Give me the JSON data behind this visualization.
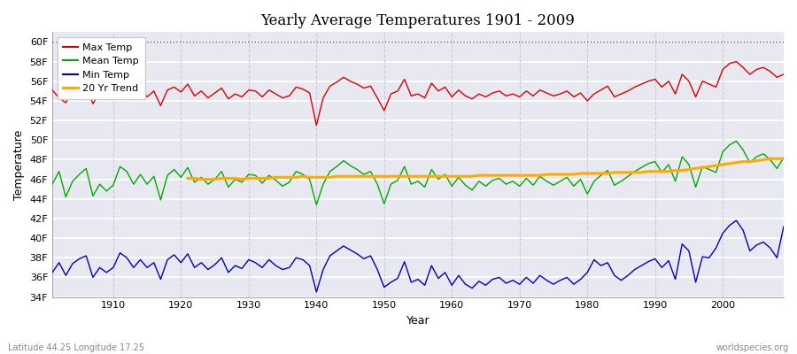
{
  "title": "Yearly Average Temperatures 1901 - 2009",
  "xlabel": "Year",
  "ylabel": "Temperature",
  "xlim": [
    1901,
    2009
  ],
  "ylim": [
    34,
    61
  ],
  "yticks": [
    34,
    36,
    38,
    40,
    42,
    44,
    46,
    48,
    50,
    52,
    54,
    56,
    58,
    60
  ],
  "ytick_labels": [
    "34F",
    "36F",
    "38F",
    "40F",
    "42F",
    "44F",
    "46F",
    "48F",
    "50F",
    "52F",
    "54F",
    "56F",
    "58F",
    "60F"
  ],
  "bg_color": "#e8e8f0",
  "fig_color": "#ffffff",
  "grid_color": "#ffffff",
  "vgrid_color": "#ccccdd",
  "dashed_line_y": 60,
  "dashed_line_color": "#555555",
  "legend_loc": "upper left",
  "footnote_left": "Latitude 44.25 Longitude 17.25",
  "footnote_right": "worldspecies.org",
  "colors": {
    "max": "#dd0000",
    "mean": "#00aa00",
    "min": "#0000cc",
    "trend": "#ffaa00"
  },
  "years": [
    1901,
    1902,
    1903,
    1904,
    1905,
    1906,
    1907,
    1908,
    1909,
    1910,
    1911,
    1912,
    1913,
    1914,
    1915,
    1916,
    1917,
    1918,
    1919,
    1920,
    1921,
    1922,
    1923,
    1924,
    1925,
    1926,
    1927,
    1928,
    1929,
    1930,
    1931,
    1932,
    1933,
    1934,
    1935,
    1936,
    1937,
    1938,
    1939,
    1940,
    1941,
    1942,
    1943,
    1944,
    1945,
    1946,
    1947,
    1948,
    1949,
    1950,
    1951,
    1952,
    1953,
    1954,
    1955,
    1956,
    1957,
    1958,
    1959,
    1960,
    1961,
    1962,
    1963,
    1964,
    1965,
    1966,
    1967,
    1968,
    1969,
    1970,
    1971,
    1972,
    1973,
    1974,
    1975,
    1976,
    1977,
    1978,
    1979,
    1980,
    1981,
    1982,
    1983,
    1984,
    1985,
    1986,
    1987,
    1988,
    1989,
    1990,
    1991,
    1992,
    1993,
    1994,
    1995,
    1996,
    1997,
    1998,
    1999,
    2000,
    2001,
    2002,
    2003,
    2004,
    2005,
    2006,
    2007,
    2008,
    2009
  ],
  "max_temp": [
    55.1,
    54.3,
    53.8,
    55.2,
    54.9,
    55.5,
    53.7,
    54.8,
    54.5,
    55.1,
    55.6,
    55.2,
    54.7,
    55.3,
    54.4,
    55.0,
    53.5,
    55.1,
    55.4,
    54.9,
    55.7,
    54.5,
    55.0,
    54.3,
    54.8,
    55.3,
    54.2,
    54.7,
    54.4,
    55.1,
    55.0,
    54.4,
    55.1,
    54.7,
    54.3,
    54.5,
    55.4,
    55.2,
    54.8,
    51.5,
    54.3,
    55.5,
    55.9,
    56.4,
    56.0,
    55.7,
    55.3,
    55.5,
    54.3,
    53.0,
    54.7,
    55.0,
    56.2,
    54.5,
    54.7,
    54.3,
    55.8,
    55.0,
    55.4,
    54.4,
    55.1,
    54.5,
    54.2,
    54.7,
    54.4,
    54.8,
    55.0,
    54.5,
    54.7,
    54.4,
    55.0,
    54.5,
    55.1,
    54.8,
    54.5,
    54.7,
    55.0,
    54.4,
    54.8,
    54.0,
    54.7,
    55.1,
    55.5,
    54.4,
    54.7,
    55.0,
    55.4,
    55.7,
    56.0,
    56.2,
    55.4,
    56.0,
    54.7,
    56.7,
    56.0,
    54.4,
    56.0,
    55.7,
    55.4,
    57.2,
    57.8,
    58.0,
    57.4,
    56.7,
    57.2,
    57.4,
    57.0,
    56.4,
    56.7
  ],
  "mean_temp": [
    45.5,
    46.8,
    44.2,
    45.8,
    46.5,
    47.1,
    44.3,
    45.5,
    44.8,
    45.4,
    47.3,
    46.8,
    45.5,
    46.5,
    45.5,
    46.3,
    43.9,
    46.4,
    47.0,
    46.2,
    47.2,
    45.7,
    46.2,
    45.5,
    46.0,
    46.8,
    45.2,
    46.0,
    45.7,
    46.5,
    46.4,
    45.6,
    46.4,
    45.9,
    45.3,
    45.7,
    46.8,
    46.5,
    46.0,
    43.4,
    45.5,
    46.8,
    47.3,
    47.9,
    47.4,
    47.0,
    46.5,
    46.8,
    45.5,
    43.5,
    45.5,
    45.9,
    47.3,
    45.5,
    45.8,
    45.2,
    47.0,
    46.0,
    46.5,
    45.3,
    46.2,
    45.4,
    44.9,
    45.8,
    45.3,
    45.9,
    46.1,
    45.5,
    45.8,
    45.3,
    46.1,
    45.4,
    46.3,
    45.8,
    45.4,
    45.8,
    46.2,
    45.3,
    46.0,
    44.5,
    45.8,
    46.4,
    46.9,
    45.4,
    45.8,
    46.3,
    46.8,
    47.2,
    47.6,
    47.8,
    46.7,
    47.5,
    45.8,
    48.3,
    47.5,
    45.2,
    47.3,
    47.0,
    46.7,
    48.8,
    49.5,
    49.9,
    49.0,
    47.7,
    48.3,
    48.6,
    48.0,
    47.1,
    48.2
  ],
  "min_temp": [
    36.5,
    37.5,
    36.2,
    37.4,
    37.9,
    38.2,
    36.0,
    37.0,
    36.5,
    37.0,
    38.5,
    38.0,
    37.0,
    37.8,
    37.0,
    37.5,
    35.8,
    37.8,
    38.3,
    37.5,
    38.4,
    37.0,
    37.5,
    36.8,
    37.3,
    38.0,
    36.5,
    37.2,
    36.9,
    37.8,
    37.5,
    37.0,
    37.8,
    37.2,
    36.8,
    37.0,
    38.0,
    37.8,
    37.2,
    34.5,
    36.8,
    38.2,
    38.7,
    39.2,
    38.8,
    38.4,
    37.9,
    38.2,
    36.8,
    35.0,
    35.5,
    35.9,
    37.6,
    35.5,
    35.8,
    35.2,
    37.2,
    35.9,
    36.5,
    35.2,
    36.2,
    35.3,
    34.9,
    35.6,
    35.2,
    35.8,
    36.0,
    35.4,
    35.7,
    35.3,
    36.0,
    35.4,
    36.2,
    35.7,
    35.3,
    35.7,
    36.0,
    35.3,
    35.8,
    36.5,
    37.8,
    37.2,
    37.5,
    36.2,
    35.7,
    36.2,
    36.8,
    37.2,
    37.6,
    37.9,
    37.0,
    37.7,
    35.8,
    39.4,
    38.7,
    35.5,
    38.1,
    38.0,
    39.0,
    40.5,
    41.3,
    41.8,
    40.8,
    38.7,
    39.3,
    39.6,
    39.0,
    38.0,
    41.2
  ],
  "trend_years": [
    1921,
    1922,
    1923,
    1924,
    1925,
    1926,
    1927,
    1928,
    1929,
    1930,
    1931,
    1932,
    1933,
    1934,
    1935,
    1936,
    1937,
    1938,
    1939,
    1940,
    1941,
    1942,
    1943,
    1944,
    1945,
    1946,
    1947,
    1948,
    1949,
    1950,
    1951,
    1952,
    1953,
    1954,
    1955,
    1956,
    1957,
    1958,
    1959,
    1960,
    1961,
    1962,
    1963,
    1964,
    1965,
    1966,
    1967,
    1968,
    1969,
    1970,
    1971,
    1972,
    1973,
    1974,
    1975,
    1976,
    1977,
    1978,
    1979,
    1980,
    1981,
    1982,
    1983,
    1984,
    1985,
    1986,
    1987,
    1988,
    1989,
    1990,
    1991,
    1992,
    1993,
    1994,
    1995,
    1996,
    1997,
    1998,
    1999,
    2000,
    2001,
    2002,
    2003,
    2004,
    2005,
    2006,
    2007,
    2008,
    2009
  ],
  "trend_temp": [
    46.1,
    46.1,
    46.0,
    46.0,
    46.0,
    46.1,
    46.1,
    46.1,
    46.0,
    46.1,
    46.1,
    46.1,
    46.1,
    46.2,
    46.2,
    46.2,
    46.2,
    46.3,
    46.2,
    46.2,
    46.2,
    46.2,
    46.3,
    46.3,
    46.3,
    46.3,
    46.3,
    46.3,
    46.3,
    46.3,
    46.3,
    46.3,
    46.3,
    46.3,
    46.3,
    46.3,
    46.3,
    46.3,
    46.3,
    46.3,
    46.3,
    46.3,
    46.3,
    46.4,
    46.4,
    46.4,
    46.4,
    46.4,
    46.4,
    46.4,
    46.4,
    46.4,
    46.4,
    46.5,
    46.5,
    46.5,
    46.5,
    46.5,
    46.6,
    46.6,
    46.6,
    46.6,
    46.6,
    46.7,
    46.7,
    46.7,
    46.7,
    46.7,
    46.8,
    46.8,
    46.8,
    46.8,
    46.9,
    46.9,
    47.0,
    47.1,
    47.2,
    47.3,
    47.4,
    47.5,
    47.6,
    47.7,
    47.8,
    47.8,
    47.9,
    48.0,
    48.1,
    48.1,
    48.1
  ]
}
